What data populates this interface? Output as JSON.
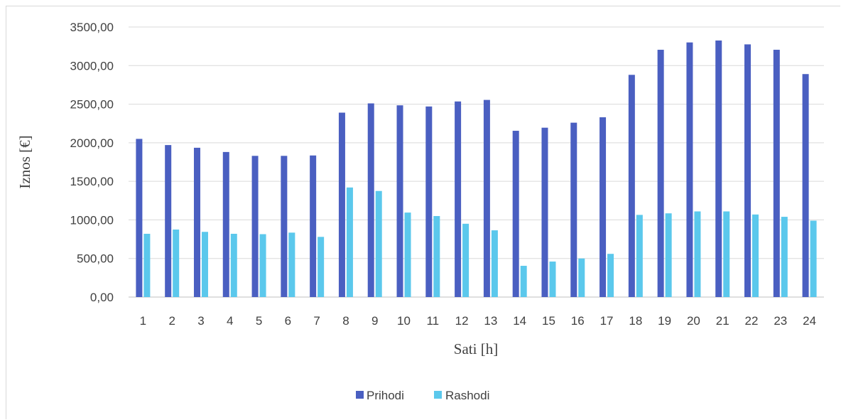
{
  "chart_data": {
    "type": "bar",
    "title": "",
    "xlabel": "Sati [h]",
    "ylabel": "Iznos [€]",
    "ylim": [
      0,
      3500
    ],
    "y_ticks": [
      "0,00",
      "500,00",
      "1000,00",
      "1500,00",
      "2000,00",
      "2500,00",
      "3000,00",
      "3500,00"
    ],
    "categories": [
      "1",
      "2",
      "3",
      "4",
      "5",
      "6",
      "7",
      "8",
      "9",
      "10",
      "11",
      "12",
      "13",
      "14",
      "15",
      "16",
      "17",
      "18",
      "19",
      "20",
      "21",
      "22",
      "23",
      "24"
    ],
    "series": [
      {
        "name": "Prihodi",
        "color": "#4a5fc1",
        "values": [
          2050,
          1970,
          1935,
          1880,
          1830,
          1830,
          1835,
          2390,
          2510,
          2485,
          2470,
          2535,
          2555,
          2155,
          2195,
          2260,
          2330,
          2880,
          3205,
          3300,
          3325,
          3275,
          3205,
          2890
        ]
      },
      {
        "name": "Rashodi",
        "color": "#5bc8ec",
        "values": [
          820,
          875,
          845,
          820,
          815,
          835,
          780,
          1420,
          1375,
          1095,
          1050,
          950,
          865,
          405,
          460,
          500,
          560,
          1065,
          1085,
          1110,
          1110,
          1070,
          1040,
          990
        ]
      }
    ],
    "grid": true,
    "legend_position": "bottom"
  }
}
